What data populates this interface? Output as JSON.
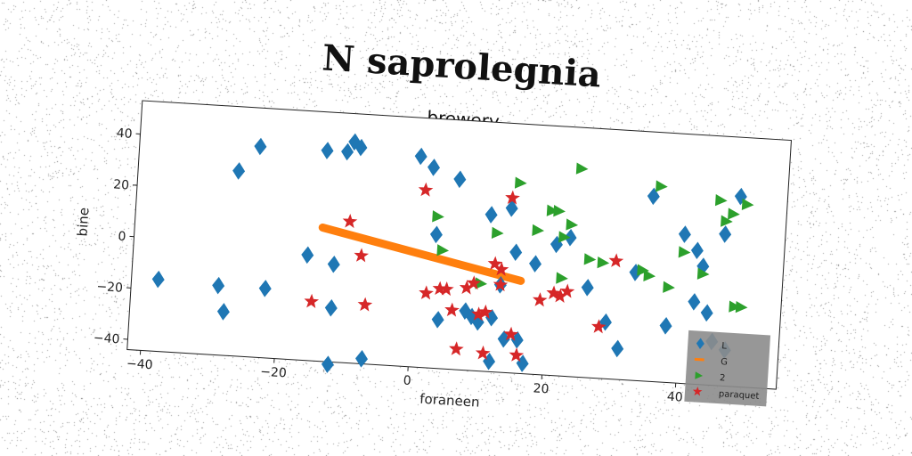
{
  "chart_data": {
    "type": "scatter",
    "title": "N saprolegnia",
    "subtitle": "brewery",
    "xlabel": "foraneen",
    "ylabel": "bine",
    "xlim": [
      -42,
      55
    ],
    "ylim": [
      -44,
      53
    ],
    "xticks": [
      -40,
      -20,
      0,
      20,
      40
    ],
    "yticks": [
      -40,
      -20,
      0,
      20,
      40
    ],
    "legend_position": "lower-right",
    "series": [
      {
        "name": "L",
        "marker": "diamond",
        "color": "#1f77b4",
        "points": [
          [
            -38,
            -16
          ],
          [
            -29,
            -17
          ],
          [
            -28,
            -27
          ],
          [
            -27,
            28
          ],
          [
            -24,
            38
          ],
          [
            -22,
            -17
          ],
          [
            -16,
            -3
          ],
          [
            -14,
            38
          ],
          [
            -12,
            -6
          ],
          [
            -12,
            -23
          ],
          [
            -11,
            38
          ],
          [
            -10,
            42
          ],
          [
            -9,
            40
          ],
          [
            -7,
            -42
          ],
          [
            -12,
            -45
          ],
          [
            0,
            38
          ],
          [
            2,
            34
          ],
          [
            3,
            8
          ],
          [
            4,
            -25
          ],
          [
            6,
            30
          ],
          [
            8,
            -21
          ],
          [
            9,
            -23
          ],
          [
            10,
            -25
          ],
          [
            11,
            17
          ],
          [
            12,
            -23
          ],
          [
            12,
            -40
          ],
          [
            13,
            -10
          ],
          [
            14,
            -31
          ],
          [
            14,
            20
          ],
          [
            15,
            3
          ],
          [
            16,
            -31
          ],
          [
            17,
            -40
          ],
          [
            18,
            -1
          ],
          [
            21,
            7
          ],
          [
            23,
            10
          ],
          [
            26,
            -9
          ],
          [
            29,
            -22
          ],
          [
            31,
            -32
          ],
          [
            33,
            -2
          ],
          [
            35,
            28
          ],
          [
            38,
            -22
          ],
          [
            40,
            14
          ],
          [
            42,
            8
          ],
          [
            42,
            -12
          ],
          [
            43,
            2
          ],
          [
            44,
            -16
          ],
          [
            45,
            -27
          ],
          [
            46,
            -48
          ],
          [
            46,
            15
          ],
          [
            47,
            -30
          ],
          [
            48,
            30
          ]
        ]
      },
      {
        "name": "G",
        "marker": "line",
        "color": "#ff7f0e",
        "points": [
          [
            -14,
            8
          ],
          [
            16,
            -8
          ]
        ]
      },
      {
        "name": "2",
        "marker": "triangle-right",
        "color": "#2ca02c",
        "points": [
          [
            3,
            15
          ],
          [
            4,
            2
          ],
          [
            10,
            -10
          ],
          [
            12,
            10
          ],
          [
            15,
            30
          ],
          [
            18,
            12
          ],
          [
            20,
            20
          ],
          [
            21,
            20
          ],
          [
            22,
            10
          ],
          [
            22,
            -6
          ],
          [
            23,
            15
          ],
          [
            24,
            37
          ],
          [
            26,
            2
          ],
          [
            28,
            1
          ],
          [
            34,
            -1
          ],
          [
            35,
            -3
          ],
          [
            36,
            32
          ],
          [
            38,
            -7
          ],
          [
            40,
            7
          ],
          [
            43,
            -1
          ],
          [
            45,
            28
          ],
          [
            46,
            20
          ],
          [
            47,
            23
          ],
          [
            48,
            -13
          ],
          [
            49,
            -13
          ],
          [
            49,
            27
          ]
        ]
      },
      {
        "name": "paraquet",
        "marker": "star",
        "color": "#d62728",
        "points": [
          [
            -15,
            -21
          ],
          [
            -10,
            11
          ],
          [
            -8,
            -2
          ],
          [
            -7,
            -21
          ],
          [
            1,
            25
          ],
          [
            2,
            -15
          ],
          [
            4,
            -13
          ],
          [
            5,
            -13
          ],
          [
            6,
            -21
          ],
          [
            7,
            -36
          ],
          [
            8,
            -12
          ],
          [
            9,
            -10
          ],
          [
            10,
            -22
          ],
          [
            11,
            -21
          ],
          [
            11,
            -37
          ],
          [
            12,
            -2
          ],
          [
            13,
            -4
          ],
          [
            13,
            -10
          ],
          [
            14,
            24
          ],
          [
            15,
            -29
          ],
          [
            16,
            -37
          ],
          [
            19,
            -15
          ],
          [
            21,
            -12
          ],
          [
            22,
            -13
          ],
          [
            23,
            -11
          ],
          [
            28,
            -24
          ],
          [
            30,
            2
          ]
        ]
      }
    ]
  }
}
